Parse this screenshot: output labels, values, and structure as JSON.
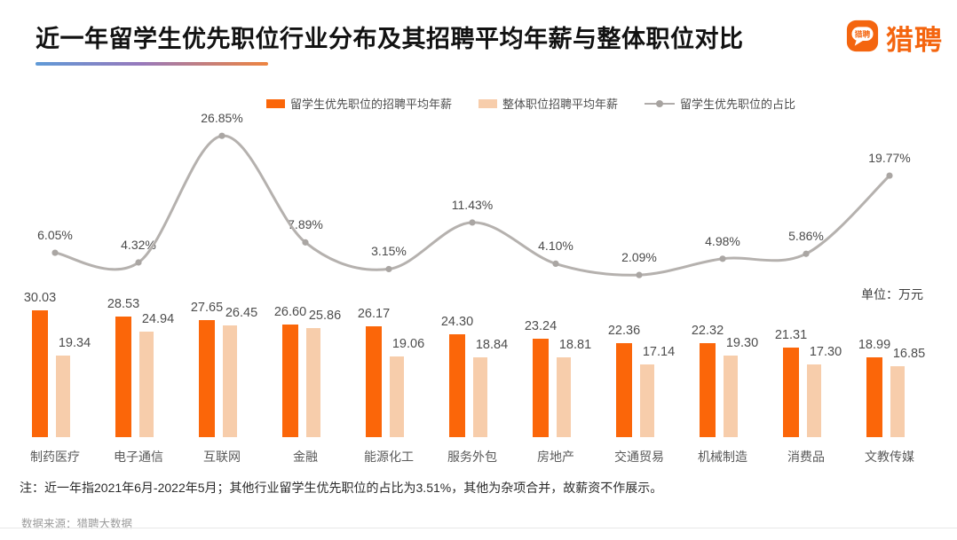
{
  "header": {
    "title": "近一年留学生优先职位行业分布及其招聘平均年薪与整体职位对比",
    "logo_text": "猎聘",
    "logo_bubble_text": "猎聘"
  },
  "legend": {
    "items": [
      {
        "label": "留学生优先职位的招聘平均年薪",
        "type": "bar",
        "color": "#fb6609"
      },
      {
        "label": "整体职位招聘平均年薪",
        "type": "bar",
        "color": "#f7cdab"
      },
      {
        "label": "留学生优先职位的占比",
        "type": "line",
        "color": "#b5b1ae"
      }
    ]
  },
  "unit_label": "单位：万元",
  "chart_data": {
    "type": "bar",
    "subtype": "grouped-bars-with-percent-line",
    "categories": [
      "制药医疗",
      "电子通信",
      "互联网",
      "金融",
      "能源化工",
      "服务外包",
      "房地产",
      "交通贸易",
      "机械制造",
      "消费品",
      "文教传媒"
    ],
    "series": [
      {
        "name": "留学生优先职位的招聘平均年薪",
        "type": "bar",
        "color": "#fb6609",
        "values": [
          30.03,
          28.53,
          27.65,
          26.6,
          26.17,
          24.3,
          23.24,
          22.36,
          22.32,
          21.31,
          18.99
        ]
      },
      {
        "name": "整体职位招聘平均年薪",
        "type": "bar",
        "color": "#f7cdab",
        "values": [
          19.34,
          24.94,
          26.45,
          25.86,
          19.06,
          18.84,
          18.81,
          17.14,
          19.3,
          17.3,
          16.85
        ]
      },
      {
        "name": "留学生优先职位的占比",
        "type": "line",
        "color": "#b5b1ae",
        "values": [
          6.05,
          4.32,
          26.85,
          7.89,
          3.15,
          11.43,
          4.1,
          2.09,
          4.98,
          5.86,
          19.77
        ]
      }
    ],
    "title": "近一年留学生优先职位行业分布及其招聘平均年薪与整体职位对比",
    "xlabel": "",
    "ylabel": "万元",
    "unit": "万元",
    "value_labels_shown": true,
    "legend_position": "top",
    "grid": false
  },
  "footer": {
    "note": "注：近一年指2021年6月-2022年5月；其他行业留学生优先职位的占比为3.51%，其他为杂项合并，故薪资不作展示。",
    "source": "数据来源：猎聘大数据"
  }
}
